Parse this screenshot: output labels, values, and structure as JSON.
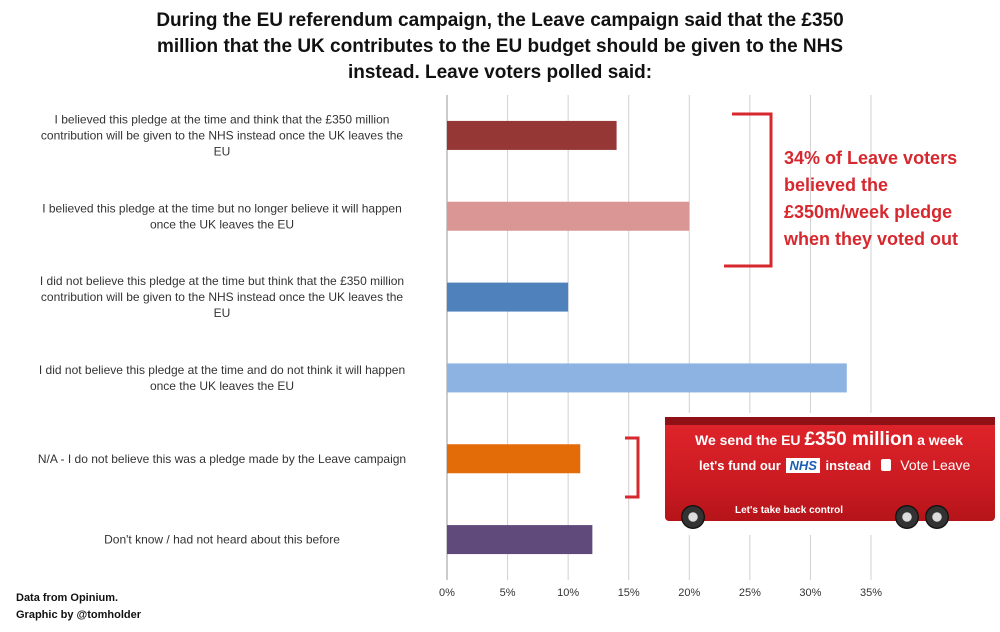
{
  "title_lines": [
    "During the EU referendum campaign, the Leave campaign said that the £350",
    "million that the UK contributes to the EU budget should be given to the NHS",
    "instead. Leave voters polled said:"
  ],
  "chart_data": {
    "type": "bar",
    "orientation": "horizontal",
    "categories": [
      [
        "I believed this pledge at the time and think that the £350 million",
        "contribution will be given to the NHS instead once the UK leaves the",
        "EU"
      ],
      [
        "I believed this pledge at the time but no longer believe it will happen",
        "once the UK leaves the EU"
      ],
      [
        "I did not believe this pledge at the time but think that the £350 million",
        "contribution will be given to the NHS instead once the UK leaves the",
        "EU"
      ],
      [
        "I did not believe this pledge at the time and do not think it will happen",
        "once the UK leaves the EU"
      ],
      [
        "N/A - I do not believe this was a pledge made by the Leave campaign"
      ],
      [
        "Don't know / had not heard about this before"
      ]
    ],
    "values": [
      14,
      20,
      10,
      33,
      11,
      12
    ],
    "colors": [
      "#953735",
      "#d99694",
      "#4f81bd",
      "#8db3e2",
      "#e36c09",
      "#604a7b"
    ],
    "xlim": [
      0,
      35
    ],
    "xticks": [
      0,
      5,
      10,
      15,
      20,
      25,
      30,
      35
    ],
    "xtick_labels": [
      "0%",
      "5%",
      "10%",
      "15%",
      "20%",
      "25%",
      "30%",
      "35%"
    ],
    "grid": true
  },
  "annotation_lines": [
    "34% of Leave voters",
    "believed the",
    "£350m/week  pledge",
    "when they voted out"
  ],
  "annotation_color": "#d6282e",
  "source_lines": [
    "Data from Opinium.",
    "Graphic by @tomholder"
  ],
  "bus": {
    "line1_a": "We send the EU",
    "line1_b": "£350 million",
    "line1_c": "a week",
    "line2_a": "let's fund our",
    "line2_nhs": "NHS",
    "line2_b": "instead",
    "line2_vote": "Vote Leave",
    "line3": "Let's take back control"
  }
}
